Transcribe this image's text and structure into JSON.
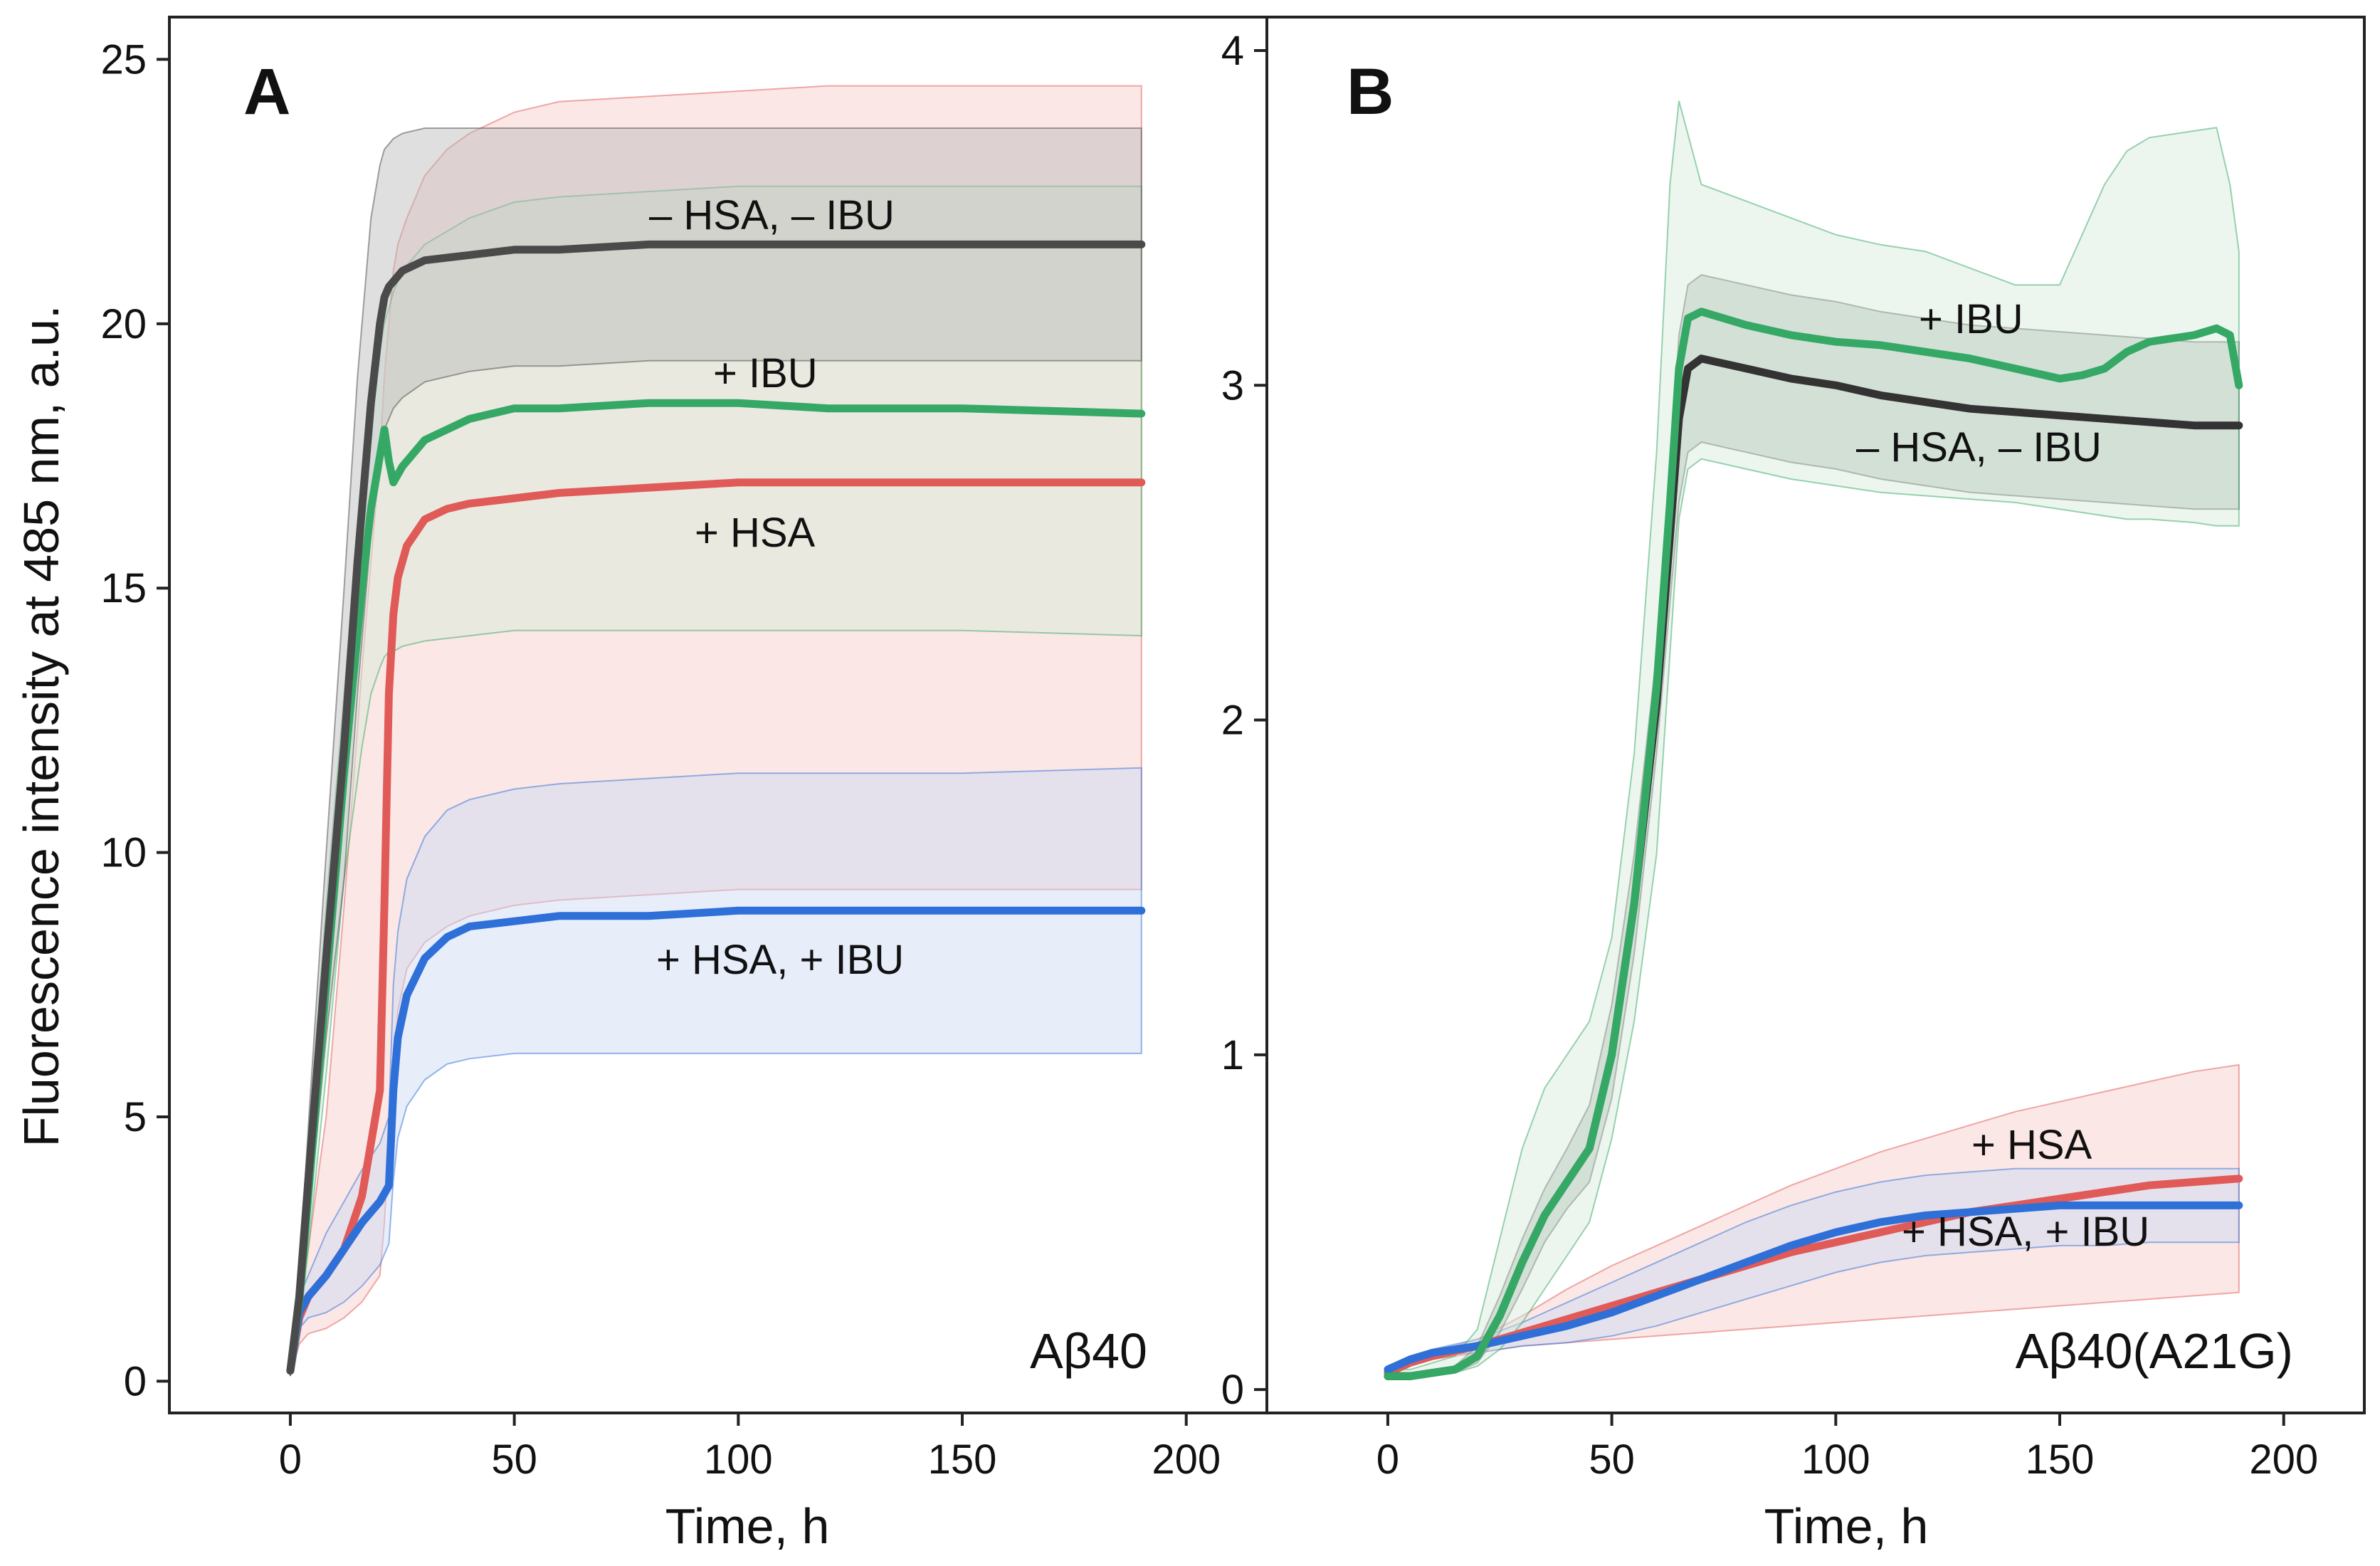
{
  "figure": {
    "y_axis_title": "Fluorescence intensity at 485 nm, a.u."
  },
  "chart_data": [
    {
      "panel_letter": "A",
      "peptide_label": "Aβ40",
      "type": "line",
      "xlabel": "Time, h",
      "ylabel": "Fluorescence intensity at 485 nm, a.u.",
      "xlim": [
        -27,
        218
      ],
      "ylim": [
        -0.6,
        25.8
      ],
      "x_ticks": [
        0,
        50,
        100,
        150,
        200
      ],
      "x_tick_labels": [
        "0",
        "50",
        "100",
        "150",
        "200"
      ],
      "y_ticks": [
        0,
        5,
        10,
        15,
        20,
        25
      ],
      "y_tick_labels": [
        "0",
        "5",
        "10",
        "15",
        "20",
        "25"
      ],
      "series": [
        {
          "name": "+ HSA",
          "label": "+ HSA",
          "color": "#e05a58",
          "band_color": "#f7c9c6",
          "x": [
            0,
            2,
            4,
            8,
            12,
            16,
            20,
            21,
            22,
            23,
            24,
            26,
            30,
            35,
            40,
            50,
            60,
            80,
            100,
            120,
            150,
            190
          ],
          "mean": [
            0.2,
            1.2,
            1.6,
            2.0,
            2.5,
            3.5,
            5.5,
            9.0,
            13.0,
            14.5,
            15.2,
            15.8,
            16.3,
            16.5,
            16.6,
            16.7,
            16.8,
            16.9,
            17.0,
            17.0,
            17.0,
            17.0
          ],
          "upper": [
            0.4,
            1.5,
            2.5,
            5.0,
            9.0,
            13.5,
            17.5,
            19.0,
            20.0,
            21.0,
            21.5,
            22.0,
            22.8,
            23.3,
            23.6,
            24.0,
            24.2,
            24.3,
            24.4,
            24.5,
            24.5,
            24.5
          ],
          "lower": [
            0.1,
            0.7,
            0.9,
            1.0,
            1.2,
            1.5,
            2.0,
            3.0,
            4.5,
            6.0,
            7.0,
            7.8,
            8.3,
            8.6,
            8.8,
            9.0,
            9.1,
            9.2,
            9.3,
            9.3,
            9.3,
            9.3
          ]
        },
        {
          "name": "+ HSA, + IBU",
          "label": "+ HSA, + IBU",
          "color": "#2f6fd8",
          "band_color": "#c9d9f4",
          "x": [
            0,
            2,
            4,
            8,
            12,
            16,
            20,
            22,
            23,
            24,
            26,
            30,
            35,
            40,
            50,
            60,
            80,
            100,
            120,
            150,
            190
          ],
          "mean": [
            0.2,
            1.3,
            1.6,
            2.0,
            2.5,
            3.0,
            3.4,
            3.7,
            5.5,
            6.5,
            7.3,
            8.0,
            8.4,
            8.6,
            8.7,
            8.8,
            8.8,
            8.9,
            8.9,
            8.9,
            8.9
          ],
          "upper": [
            0.4,
            1.6,
            2.0,
            2.8,
            3.4,
            4.0,
            4.5,
            5.0,
            7.5,
            8.5,
            9.5,
            10.3,
            10.8,
            11.0,
            11.2,
            11.3,
            11.4,
            11.5,
            11.5,
            11.5,
            11.6
          ],
          "lower": [
            0.1,
            1.0,
            1.2,
            1.3,
            1.5,
            1.8,
            2.2,
            2.6,
            3.8,
            4.6,
            5.2,
            5.7,
            6.0,
            6.1,
            6.2,
            6.2,
            6.2,
            6.2,
            6.2,
            6.2,
            6.2
          ]
        },
        {
          "name": "+ IBU",
          "label": "+ IBU",
          "color": "#35a866",
          "band_color": "#d4ecd9",
          "x": [
            0,
            2,
            4,
            8,
            12,
            16,
            18,
            20,
            21,
            22,
            23,
            25,
            30,
            40,
            50,
            60,
            80,
            100,
            120,
            150,
            190
          ],
          "mean": [
            0.2,
            1.5,
            3.5,
            7.5,
            11.5,
            15.0,
            16.5,
            17.5,
            18.0,
            17.4,
            17.0,
            17.3,
            17.8,
            18.2,
            18.4,
            18.4,
            18.5,
            18.5,
            18.4,
            18.4,
            18.3
          ],
          "upper": [
            0.4,
            2.0,
            4.5,
            9.0,
            13.0,
            17.0,
            18.5,
            19.5,
            20.0,
            20.3,
            20.6,
            21.0,
            21.5,
            22.0,
            22.3,
            22.4,
            22.5,
            22.6,
            22.6,
            22.6,
            22.6
          ],
          "lower": [
            0.1,
            1.0,
            2.5,
            5.8,
            9.5,
            12.0,
            13.0,
            13.5,
            13.7,
            13.8,
            13.8,
            13.9,
            14.0,
            14.1,
            14.2,
            14.2,
            14.2,
            14.2,
            14.2,
            14.2,
            14.1
          ]
        },
        {
          "name": "– HSA, – IBU",
          "label": "– HSA, – IBU",
          "color": "#4a4a4a",
          "band_color": "#b8b8b8",
          "x": [
            0,
            2,
            4,
            8,
            12,
            15,
            18,
            20,
            21,
            22,
            23,
            25,
            30,
            40,
            50,
            60,
            80,
            100,
            120,
            150,
            190
          ],
          "mean": [
            0.2,
            1.6,
            3.8,
            8.0,
            12.0,
            15.5,
            18.5,
            20.0,
            20.5,
            20.7,
            20.8,
            21.0,
            21.2,
            21.3,
            21.4,
            21.4,
            21.5,
            21.5,
            21.5,
            21.5,
            21.5
          ],
          "upper": [
            0.4,
            2.0,
            4.8,
            10.0,
            15.0,
            19.0,
            22.0,
            23.0,
            23.3,
            23.4,
            23.5,
            23.6,
            23.7,
            23.7,
            23.7,
            23.7,
            23.7,
            23.7,
            23.7,
            23.7,
            23.7
          ],
          "lower": [
            0.1,
            1.2,
            3.0,
            6.5,
            9.5,
            13.0,
            16.0,
            17.5,
            18.0,
            18.2,
            18.4,
            18.6,
            18.9,
            19.1,
            19.2,
            19.2,
            19.3,
            19.3,
            19.3,
            19.3,
            19.3
          ]
        }
      ]
    },
    {
      "panel_letter": "B",
      "peptide_label": "Aβ40(A21G)",
      "type": "line",
      "xlabel": "Time, h",
      "ylabel": "",
      "xlim": [
        -27,
        218
      ],
      "ylim": [
        -0.07,
        4.1
      ],
      "x_ticks": [
        0,
        50,
        100,
        150,
        200
      ],
      "x_tick_labels": [
        "0",
        "50",
        "100",
        "150",
        "200"
      ],
      "y_ticks": [
        0,
        1,
        2,
        3,
        4
      ],
      "y_tick_labels": [
        "0",
        "1",
        "2",
        "3",
        "4"
      ],
      "series": [
        {
          "name": "+ HSA",
          "label": "+ HSA",
          "color": "#e05a58",
          "band_color": "#f7c9c6",
          "x": [
            0,
            5,
            10,
            20,
            30,
            40,
            50,
            60,
            70,
            80,
            90,
            100,
            110,
            120,
            130,
            140,
            150,
            160,
            170,
            180,
            190
          ],
          "mean": [
            0.05,
            0.08,
            0.1,
            0.13,
            0.17,
            0.21,
            0.25,
            0.29,
            0.33,
            0.37,
            0.41,
            0.44,
            0.47,
            0.5,
            0.53,
            0.55,
            0.57,
            0.59,
            0.61,
            0.62,
            0.63
          ],
          "upper": [
            0.06,
            0.09,
            0.11,
            0.15,
            0.22,
            0.3,
            0.37,
            0.43,
            0.49,
            0.55,
            0.61,
            0.66,
            0.71,
            0.75,
            0.79,
            0.83,
            0.86,
            0.89,
            0.92,
            0.95,
            0.97
          ],
          "lower": [
            0.04,
            0.07,
            0.09,
            0.11,
            0.13,
            0.14,
            0.15,
            0.16,
            0.17,
            0.18,
            0.19,
            0.2,
            0.21,
            0.22,
            0.23,
            0.24,
            0.25,
            0.26,
            0.27,
            0.28,
            0.29
          ]
        },
        {
          "name": "+ HSA, + IBU",
          "label": "+ HSA, + IBU",
          "color": "#2f6fd8",
          "band_color": "#c9d9f4",
          "x": [
            0,
            5,
            10,
            20,
            30,
            40,
            50,
            60,
            70,
            80,
            90,
            100,
            110,
            120,
            130,
            140,
            150,
            160,
            170,
            180,
            190
          ],
          "mean": [
            0.06,
            0.09,
            0.11,
            0.13,
            0.16,
            0.19,
            0.23,
            0.28,
            0.33,
            0.38,
            0.43,
            0.47,
            0.5,
            0.52,
            0.53,
            0.54,
            0.55,
            0.55,
            0.55,
            0.55,
            0.55
          ],
          "upper": [
            0.07,
            0.1,
            0.12,
            0.15,
            0.2,
            0.26,
            0.32,
            0.38,
            0.44,
            0.5,
            0.55,
            0.59,
            0.62,
            0.64,
            0.65,
            0.66,
            0.66,
            0.66,
            0.66,
            0.66,
            0.66
          ],
          "lower": [
            0.05,
            0.08,
            0.1,
            0.11,
            0.13,
            0.14,
            0.16,
            0.19,
            0.23,
            0.27,
            0.31,
            0.35,
            0.38,
            0.4,
            0.41,
            0.42,
            0.43,
            0.43,
            0.44,
            0.44,
            0.44
          ]
        },
        {
          "name": "– HSA, – IBU",
          "label": "– HSA, – IBU",
          "color": "#333333",
          "band_color": "#9aa79d",
          "x": [
            0,
            5,
            10,
            15,
            20,
            25,
            30,
            35,
            40,
            45,
            50,
            55,
            60,
            63,
            65,
            67,
            70,
            80,
            90,
            100,
            110,
            120,
            130,
            140,
            150,
            160,
            170,
            180,
            190
          ],
          "mean": [
            0.04,
            0.04,
            0.05,
            0.06,
            0.1,
            0.22,
            0.38,
            0.52,
            0.62,
            0.72,
            1.0,
            1.45,
            2.05,
            2.55,
            2.9,
            3.05,
            3.08,
            3.05,
            3.02,
            3.0,
            2.97,
            2.95,
            2.93,
            2.92,
            2.91,
            2.9,
            2.89,
            2.88,
            2.88
          ],
          "upper": [
            0.05,
            0.05,
            0.06,
            0.07,
            0.13,
            0.28,
            0.45,
            0.6,
            0.72,
            0.85,
            1.15,
            1.6,
            2.2,
            2.75,
            3.15,
            3.3,
            3.33,
            3.3,
            3.27,
            3.25,
            3.22,
            3.2,
            3.18,
            3.17,
            3.16,
            3.15,
            3.14,
            3.13,
            3.13
          ],
          "lower": [
            0.03,
            0.03,
            0.04,
            0.05,
            0.08,
            0.17,
            0.3,
            0.44,
            0.54,
            0.62,
            0.87,
            1.3,
            1.9,
            2.35,
            2.65,
            2.8,
            2.83,
            2.8,
            2.77,
            2.75,
            2.72,
            2.7,
            2.68,
            2.67,
            2.66,
            2.65,
            2.64,
            2.63,
            2.63
          ]
        },
        {
          "name": "+ IBU",
          "label": "+ IBU",
          "color": "#35a866",
          "band_color": "#d4ecd9",
          "x": [
            0,
            5,
            10,
            15,
            20,
            25,
            30,
            35,
            40,
            45,
            50,
            55,
            60,
            63,
            65,
            67,
            70,
            80,
            90,
            100,
            110,
            120,
            130,
            140,
            150,
            155,
            160,
            165,
            170,
            180,
            185,
            188,
            190
          ],
          "mean": [
            0.04,
            0.04,
            0.05,
            0.06,
            0.1,
            0.22,
            0.38,
            0.52,
            0.62,
            0.72,
            1.0,
            1.45,
            2.1,
            2.65,
            3.05,
            3.2,
            3.22,
            3.18,
            3.15,
            3.13,
            3.12,
            3.1,
            3.08,
            3.05,
            3.02,
            3.03,
            3.05,
            3.1,
            3.13,
            3.15,
            3.17,
            3.15,
            3.0
          ],
          "upper": [
            0.06,
            0.06,
            0.08,
            0.1,
            0.18,
            0.45,
            0.72,
            0.9,
            1.0,
            1.1,
            1.35,
            1.9,
            2.8,
            3.6,
            3.85,
            3.75,
            3.6,
            3.55,
            3.5,
            3.45,
            3.42,
            3.4,
            3.35,
            3.3,
            3.3,
            3.45,
            3.6,
            3.7,
            3.74,
            3.76,
            3.77,
            3.6,
            3.4
          ],
          "lower": [
            0.03,
            0.03,
            0.04,
            0.05,
            0.07,
            0.12,
            0.2,
            0.3,
            0.4,
            0.5,
            0.75,
            1.1,
            1.6,
            2.2,
            2.6,
            2.75,
            2.78,
            2.75,
            2.72,
            2.7,
            2.68,
            2.67,
            2.66,
            2.65,
            2.63,
            2.62,
            2.61,
            2.6,
            2.6,
            2.59,
            2.58,
            2.58,
            2.58
          ]
        }
      ]
    }
  ]
}
